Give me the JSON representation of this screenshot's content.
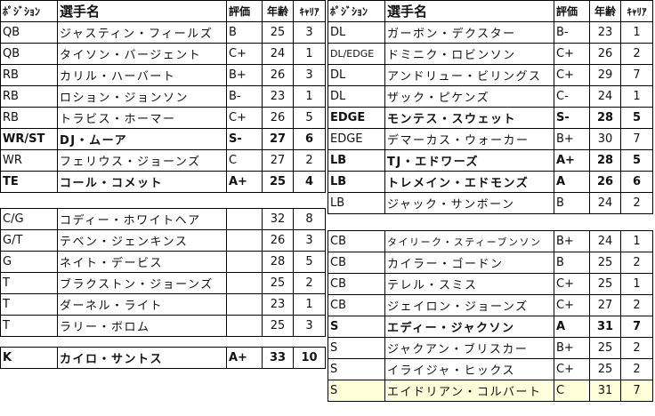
{
  "headers": {
    "position": "ﾎﾟｼﾞｼｮﾝ",
    "name": "選手名",
    "rating": "評価",
    "age": "年齢",
    "career": "ｷｬﾘｱ"
  },
  "tables": [
    {
      "id": "offense-skill",
      "header": true,
      "rows": [
        {
          "pos": "QB",
          "name": "ジャスティン・フィールズ",
          "rating": "B",
          "age": "25",
          "career": "3"
        },
        {
          "pos": "QB",
          "name": "タイソン・バージェント",
          "rating": "C+",
          "age": "24",
          "career": "1"
        },
        {
          "pos": "RB",
          "name": "カリル・ハーバート",
          "rating": "B+",
          "age": "26",
          "career": "3"
        },
        {
          "pos": "RB",
          "name": "ロション・ジョンソン",
          "rating": "B-",
          "age": "23",
          "career": "1"
        },
        {
          "pos": "RB",
          "name": "トラビス・ホーマー",
          "rating": "C+",
          "age": "26",
          "career": "5"
        },
        {
          "pos": "WR/ST",
          "name": "DJ・ムーア",
          "rating": "S-",
          "age": "27",
          "career": "6",
          "bold": true
        },
        {
          "pos": "WR",
          "name": "フェリウス・ジョーンズ",
          "rating": "C",
          "age": "27",
          "career": "2"
        },
        {
          "pos": "TE",
          "name": "コール・コメット",
          "rating": "A+",
          "age": "25",
          "career": "4",
          "bold": true
        }
      ]
    },
    {
      "id": "offensive-line",
      "header": false,
      "rows": [
        {
          "pos": "C/G",
          "name": "コディー・ホワイトヘア",
          "rating": "",
          "age": "32",
          "career": "8"
        },
        {
          "pos": "G/T",
          "name": "テベン・ジェンキンス",
          "rating": "",
          "age": "26",
          "career": "3"
        },
        {
          "pos": "G",
          "name": "ネイト・デービス",
          "rating": "",
          "age": "28",
          "career": "5"
        },
        {
          "pos": "T",
          "name": "ブラクストン・ジョーンズ",
          "rating": "",
          "age": "25",
          "career": "2"
        },
        {
          "pos": "T",
          "name": "ダーネル・ライト",
          "rating": "",
          "age": "23",
          "career": "1"
        },
        {
          "pos": "T",
          "name": "ラリー・ボロム",
          "rating": "",
          "age": "25",
          "career": "3"
        }
      ]
    },
    {
      "id": "kicker",
      "header": false,
      "rows": [
        {
          "pos": "K",
          "name": "カイロ・サントス",
          "rating": "A+",
          "age": "33",
          "career": "10",
          "bold": true
        }
      ]
    },
    {
      "id": "front-seven",
      "header": true,
      "rows": [
        {
          "pos": "DL",
          "name": "ガーボン・デクスター",
          "rating": "B-",
          "age": "23",
          "career": "1"
        },
        {
          "pos": "DL/EDGE",
          "name": "ドミニク・ロビンソン",
          "rating": "C+",
          "age": "26",
          "career": "2",
          "smallpos": true
        },
        {
          "pos": "DL",
          "name": "アンドリュー・ビリングス",
          "rating": "C+",
          "age": "29",
          "career": "7"
        },
        {
          "pos": "DL",
          "name": "ザック・ピケンズ",
          "rating": "C-",
          "age": "24",
          "career": "1"
        },
        {
          "pos": "EDGE",
          "name": "モンテス・スウェット",
          "rating": "S-",
          "age": "28",
          "career": "5",
          "bold": true
        },
        {
          "pos": "EDGE",
          "name": "デマーカス・ウォーカー",
          "rating": "B+",
          "age": "30",
          "career": "7"
        },
        {
          "pos": "LB",
          "name": "TJ・エドワーズ",
          "rating": "A+",
          "age": "28",
          "career": "5",
          "bold": true
        },
        {
          "pos": "LB",
          "name": "トレメイン・エドモンズ",
          "rating": "A",
          "age": "26",
          "career": "6",
          "bold": true
        },
        {
          "pos": "LB",
          "name": "ジャック・サンボーン",
          "rating": "B",
          "age": "24",
          "career": "2"
        }
      ]
    },
    {
      "id": "secondary",
      "header": false,
      "rows": [
        {
          "pos": "CB",
          "name": "タイリーク・スティーブンソン",
          "rating": "B+",
          "age": "24",
          "career": "1",
          "smallname": true
        },
        {
          "pos": "CB",
          "name": "カイラー・ゴードン",
          "rating": "B",
          "age": "25",
          "career": "2"
        },
        {
          "pos": "CB",
          "name": "テレル・スミス",
          "rating": "C+",
          "age": "25",
          "career": "1"
        },
        {
          "pos": "CB",
          "name": "ジェイロン・ジョーンズ",
          "rating": "C+",
          "age": "27",
          "career": "2"
        },
        {
          "pos": "S",
          "name": "エディー・ジャクソン",
          "rating": "A",
          "age": "31",
          "career": "7",
          "bold": true
        },
        {
          "pos": "S",
          "name": "ジャクアン・ブリスカー",
          "rating": "B+",
          "age": "25",
          "career": "2"
        },
        {
          "pos": "S",
          "name": "イライジャ・ヒックス",
          "rating": "C+",
          "age": "25",
          "career": "2"
        },
        {
          "pos": "S",
          "name": "エイドリアン・コルバート",
          "rating": "C",
          "age": "31",
          "career": "7",
          "highlight": true
        }
      ]
    }
  ],
  "colors": {
    "highlight": "#ffffd9",
    "border": "#000000"
  }
}
